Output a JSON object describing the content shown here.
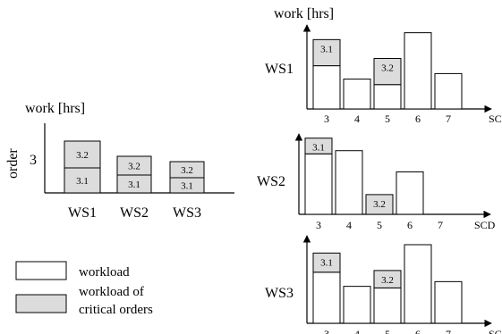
{
  "colors": {
    "critical_fill": "#dcdcdc",
    "stroke": "#000000",
    "background": "#ffffff"
  },
  "left_chart": {
    "ylabel_top": "work [hrs]",
    "ylabel_side": "order",
    "order_value": "3",
    "stations": [
      {
        "name": "WS1",
        "segments": [
          {
            "label": "3.1",
            "critical": true
          },
          {
            "label": "3.2",
            "critical": true
          }
        ]
      },
      {
        "name": "WS2",
        "segments": [
          {
            "label": "3.1",
            "critical": true
          },
          {
            "label": "3.2",
            "critical": true
          }
        ]
      },
      {
        "name": "WS3",
        "segments": [
          {
            "label": "3.1",
            "critical": true
          },
          {
            "label": "3.2",
            "critical": true
          }
        ]
      }
    ]
  },
  "right_charts": {
    "ylabel_top": "work [hrs]",
    "xlabel": "SCD",
    "x_ticks": [
      "3",
      "4",
      "5",
      "6",
      "7"
    ],
    "stations": [
      {
        "name": "WS1",
        "bars": [
          {
            "x": "3",
            "workload": 0.55,
            "critical": 0.45,
            "label": "3.1"
          },
          {
            "x": "4",
            "workload": 0.38
          },
          {
            "x": "5",
            "workload": 0.31,
            "critical": 0.45,
            "label": "3.2"
          },
          {
            "x": "6",
            "workload": 0.97
          },
          {
            "x": "7",
            "workload": 0.45
          }
        ]
      },
      {
        "name": "WS2",
        "bars": [
          {
            "x": "3",
            "workload": 0.77,
            "critical": 0.27,
            "label": "3.1"
          },
          {
            "x": "4",
            "workload": 0.81
          },
          {
            "x": "5",
            "workload": 0.0,
            "critical": 0.34,
            "label": "3.2"
          },
          {
            "x": "6",
            "workload": 0.54
          },
          {
            "x": "7",
            "workload": 0.0
          }
        ]
      },
      {
        "name": "WS3",
        "bars": [
          {
            "x": "3",
            "workload": 0.65,
            "critical": 0.33,
            "label": "3.1"
          },
          {
            "x": "4",
            "workload": 0.47
          },
          {
            "x": "5",
            "workload": 0.45,
            "critical": 0.3,
            "label": "3.2"
          },
          {
            "x": "6",
            "workload": 1.0
          },
          {
            "x": "7",
            "workload": 0.53
          }
        ]
      }
    ]
  },
  "legend": {
    "items": [
      {
        "kind": "workload",
        "text_lines": [
          "workload"
        ]
      },
      {
        "kind": "critical",
        "text_lines": [
          "workload of",
          "critical orders"
        ]
      }
    ]
  }
}
